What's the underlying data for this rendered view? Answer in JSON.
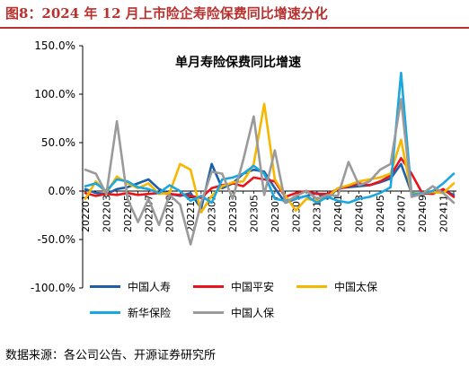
{
  "header": {
    "figure_title": "图8：2024 年 12 月上市险企寿险保费同比增速分化",
    "source": "数据来源：各公司公告、开源证券研究所"
  },
  "chart_data": {
    "type": "line",
    "title": "单月寿险保费同比增速",
    "xlabel": "",
    "ylabel": "",
    "ylim": [
      -100,
      150
    ],
    "yticks": [
      "150.0%",
      "100.0%",
      "50.0%",
      "0.0%",
      "-50.0%",
      "-100.0%"
    ],
    "ytick_values": [
      150,
      100,
      50,
      0,
      -50,
      -100
    ],
    "grid": false,
    "legend_position": "bottom",
    "x": [
      "202201",
      "202202",
      "202203",
      "202204",
      "202205",
      "202206",
      "202207",
      "202208",
      "202209",
      "202210",
      "202211",
      "202212",
      "202301",
      "202302",
      "202303",
      "202304",
      "202305",
      "202306",
      "202307",
      "202308",
      "202309",
      "202310",
      "202311",
      "202312",
      "202401",
      "202402",
      "202403",
      "202404",
      "202405",
      "202406",
      "202407",
      "202408",
      "202409",
      "202410",
      "202411",
      "202412"
    ],
    "x_tick_labels": [
      "202201",
      "202203",
      "202205",
      "202207",
      "202209",
      "202211",
      "202301",
      "202303",
      "202305",
      "202307",
      "202309",
      "202311",
      "202401",
      "202403",
      "202405",
      "202407",
      "202409",
      "202411"
    ],
    "series": [
      {
        "name": "中国人寿",
        "color": "#1f5fa8",
        "values": [
          2,
          -2,
          -3,
          2,
          4,
          8,
          12,
          2,
          -3,
          -5,
          -2,
          -18,
          28,
          3,
          8,
          18,
          22,
          20,
          3,
          -12,
          -8,
          -5,
          -2,
          -8,
          3,
          4,
          5,
          6,
          9,
          13,
          28,
          -2,
          -3,
          -2,
          1,
          -4
        ]
      },
      {
        "name": "中国平安",
        "color": "#e8141c",
        "values": [
          -2,
          -5,
          -3,
          -4,
          -2,
          -4,
          -3,
          -2,
          -3,
          -4,
          -5,
          -7,
          3,
          6,
          8,
          5,
          14,
          12,
          10,
          -6,
          -2,
          0,
          -3,
          -3,
          2,
          5,
          8,
          6,
          10,
          16,
          34,
          18,
          -2,
          -3,
          2,
          -6
        ]
      },
      {
        "name": "中国太保",
        "color": "#f5b700",
        "values": [
          -8,
          10,
          -2,
          15,
          8,
          3,
          8,
          -3,
          -2,
          28,
          22,
          -22,
          -5,
          5,
          9,
          10,
          28,
          90,
          12,
          -5,
          -20,
          -8,
          -10,
          -6,
          3,
          6,
          10,
          12,
          14,
          18,
          53,
          -3,
          -2,
          -1,
          -2,
          8
        ]
      },
      {
        "name": "新华保险",
        "color": "#1aa7e0",
        "values": [
          5,
          8,
          0,
          12,
          10,
          4,
          2,
          -2,
          6,
          0,
          -10,
          -5,
          -12,
          12,
          14,
          18,
          26,
          18,
          -8,
          -10,
          -8,
          -5,
          -12,
          -6,
          -10,
          -12,
          -8,
          -6,
          -2,
          4,
          122,
          -4,
          -2,
          0,
          8,
          18
        ]
      },
      {
        "name": "中国人保",
        "color": "#9a9a9a",
        "values": [
          22,
          18,
          -3,
          72,
          -8,
          -32,
          -8,
          -35,
          -4,
          -14,
          -55,
          -12,
          20,
          18,
          -8,
          32,
          77,
          -4,
          42,
          -12,
          -5,
          0,
          -8,
          -4,
          -5,
          30,
          6,
          10,
          22,
          28,
          95,
          -6,
          -3,
          5,
          -2,
          -12
        ]
      }
    ]
  }
}
